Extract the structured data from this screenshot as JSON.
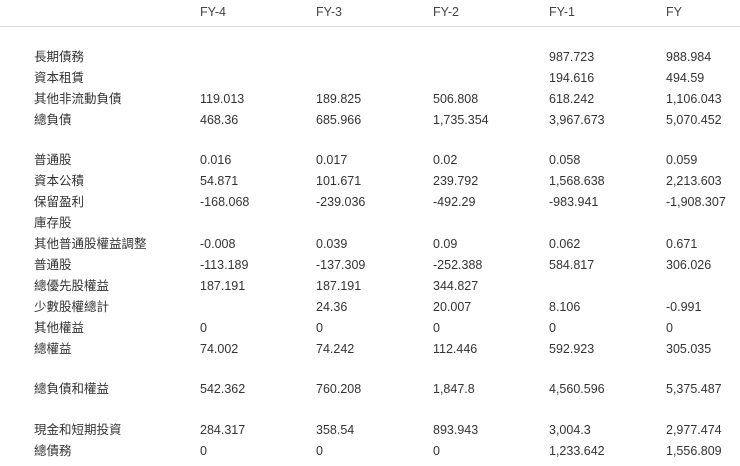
{
  "header": {
    "cols": [
      "FY-4",
      "FY-3",
      "FY-2",
      "FY-1",
      "FY"
    ]
  },
  "rows": [
    {
      "label": "長期債務",
      "values": [
        "",
        "",
        "",
        "987.723",
        "988.984"
      ]
    },
    {
      "label": "資本租賃",
      "values": [
        "",
        "",
        "",
        "194.616",
        "494.59"
      ]
    },
    {
      "label": "其他非流動負債",
      "values": [
        "119.013",
        "189.825",
        "506.808",
        "618.242",
        "1,106.043"
      ]
    },
    {
      "label": "總負債",
      "values": [
        "468.36",
        "685.966",
        "1,735.354",
        "3,967.673",
        "5,070.452"
      ]
    },
    {
      "label": "普通股",
      "values": [
        "0.016",
        "0.017",
        "0.02",
        "0.058",
        "0.059"
      ]
    },
    {
      "label": "資本公積",
      "values": [
        "54.871",
        "101.671",
        "239.792",
        "1,568.638",
        "2,213.603"
      ]
    },
    {
      "label": "保留盈利",
      "values": [
        "-168.068",
        "-239.036",
        "-492.29",
        "-983.941",
        "-1,908.307"
      ]
    },
    {
      "label": "庫存股",
      "values": [
        "",
        "",
        "",
        "",
        ""
      ]
    },
    {
      "label": "其他普通股權益調整",
      "values": [
        "-0.008",
        "0.039",
        "0.09",
        "0.062",
        "0.671"
      ]
    },
    {
      "label": "普通股",
      "values": [
        "-113.189",
        "-137.309",
        "-252.388",
        "584.817",
        "306.026"
      ]
    },
    {
      "label": "總優先股權益",
      "values": [
        "187.191",
        "187.191",
        "344.827",
        "",
        ""
      ]
    },
    {
      "label": "少數股權總計",
      "values": [
        "",
        "24.36",
        "20.007",
        "8.106",
        "-0.991"
      ]
    },
    {
      "label": "其他權益",
      "values": [
        "0",
        "0",
        "0",
        "0",
        "0"
      ]
    },
    {
      "label": "總權益",
      "values": [
        "74.002",
        "74.242",
        "112.446",
        "592.923",
        "305.035"
      ]
    },
    {
      "label": "總負債和權益",
      "values": [
        "542.362",
        "760.208",
        "1,847.8",
        "4,560.596",
        "5,375.487"
      ]
    },
    {
      "label": "現金和短期投資",
      "values": [
        "284.317",
        "358.54",
        "893.943",
        "3,004.3",
        "2,977.474"
      ]
    },
    {
      "label": "總債務",
      "values": [
        "0",
        "0",
        "0",
        "1,233.642",
        "1,556.809"
      ]
    }
  ]
}
